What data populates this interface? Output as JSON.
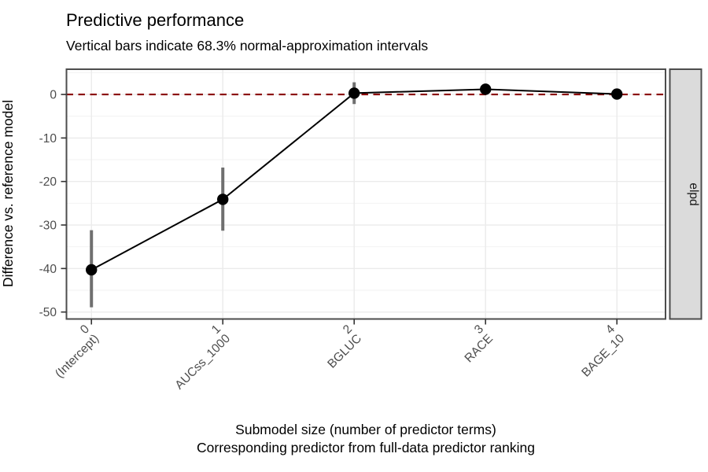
{
  "chart_data": {
    "type": "line",
    "title": "Predictive performance",
    "subtitle": "Vertical bars indicate 68.3% normal-approximation intervals",
    "ylabel": "Difference vs. reference model",
    "xlabel_line1": "Submodel size (number of predictor terms)",
    "xlabel_line2": "Corresponding predictor from full-data predictor ranking",
    "facet_label": "elpd",
    "x": [
      0,
      1,
      2,
      3,
      4
    ],
    "x_tick_numbers": [
      "0",
      "1",
      "2",
      "3",
      "4"
    ],
    "x_tick_predictors": [
      "(Intercept)",
      "AUCss_1000",
      "BGLUC",
      "RACE",
      "BAGE_10"
    ],
    "series": [
      {
        "name": "elpd difference vs. reference model",
        "estimates": [
          -40.3,
          -24.1,
          0.3,
          1.2,
          0.1
        ],
        "ci_lower": [
          -48.9,
          -31.3,
          -2.2,
          -0.1,
          -0.9
        ],
        "ci_upper": [
          -31.2,
          -16.8,
          2.8,
          2.5,
          1.1
        ]
      }
    ],
    "reference_line_y": 0,
    "y_ticks": [
      0,
      -10,
      -20,
      -30,
      -40,
      -50
    ],
    "y_minor_ticks": [
      5,
      -5,
      -15,
      -25,
      -35,
      -45
    ],
    "ylim": [
      -51.6,
      5.8
    ],
    "xlim": [
      -0.19,
      4.37
    ],
    "grid": "horizontal major+minor, vertical major only",
    "legend": "none",
    "colors": {
      "reference_line": "#8B0000",
      "trend_line": "#000000",
      "point": "#000000",
      "error_bar": "#6F6F6F",
      "grid_major": "#EBEBEB",
      "grid_minor": "#F2F2F2",
      "panel_border": "#4D4D4D",
      "tick_mark": "#333333",
      "axis_text": "#4D4D4D",
      "strip_fill": "#DBDBDB",
      "strip_border": "#4D4D4D",
      "text": "#000000",
      "background": "#FFFFFF"
    }
  }
}
